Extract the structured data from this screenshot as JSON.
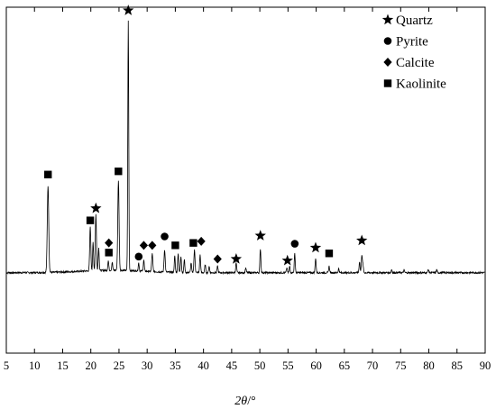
{
  "chart_data": {
    "type": "line",
    "title": "",
    "xlabel": {
      "symbol": "2θ",
      "unit": "/°"
    },
    "ylabel": "",
    "xlim": [
      5,
      90
    ],
    "grid": false,
    "legend_position": "top-right",
    "xticks": [
      5,
      10,
      15,
      20,
      25,
      30,
      35,
      40,
      45,
      50,
      55,
      60,
      65,
      70,
      75,
      80,
      85,
      90
    ],
    "xtick_labels": [
      "5",
      "10",
      "15",
      "20",
      "25",
      "30",
      "35",
      "40",
      "45",
      "50",
      "55",
      "60",
      "65",
      "70",
      "75",
      "80",
      "85",
      "90"
    ],
    "baseline": 100,
    "peaks": [
      {
        "x": 12.4,
        "h": 108,
        "w": 0.18
      },
      {
        "x": 19.9,
        "h": 55,
        "w": 0.14
      },
      {
        "x": 20.4,
        "h": 35,
        "w": 0.12
      },
      {
        "x": 20.9,
        "h": 70,
        "w": 0.14
      },
      {
        "x": 21.4,
        "h": 28,
        "w": 0.12
      },
      {
        "x": 23.1,
        "h": 12,
        "w": 0.12
      },
      {
        "x": 23.8,
        "h": 10,
        "w": 0.12
      },
      {
        "x": 24.9,
        "h": 112,
        "w": 0.16
      },
      {
        "x": 26.65,
        "h": 310,
        "w": 0.12
      },
      {
        "x": 28.5,
        "h": 10,
        "w": 0.12
      },
      {
        "x": 29.4,
        "h": 14,
        "w": 0.12
      },
      {
        "x": 30.9,
        "h": 22,
        "w": 0.14
      },
      {
        "x": 33.1,
        "h": 28,
        "w": 0.14
      },
      {
        "x": 34.9,
        "h": 20,
        "w": 0.12
      },
      {
        "x": 35.5,
        "h": 24,
        "w": 0.12
      },
      {
        "x": 36.0,
        "h": 20,
        "w": 0.12
      },
      {
        "x": 36.6,
        "h": 16,
        "w": 0.12
      },
      {
        "x": 37.8,
        "h": 12,
        "w": 0.12
      },
      {
        "x": 38.4,
        "h": 28,
        "w": 0.14
      },
      {
        "x": 39.4,
        "h": 22,
        "w": 0.12
      },
      {
        "x": 40.3,
        "h": 10,
        "w": 0.12
      },
      {
        "x": 41.0,
        "h": 8,
        "w": 0.12
      },
      {
        "x": 42.5,
        "h": 8,
        "w": 0.12
      },
      {
        "x": 45.8,
        "h": 12,
        "w": 0.12
      },
      {
        "x": 47.5,
        "h": 6,
        "w": 0.12
      },
      {
        "x": 50.1,
        "h": 30,
        "w": 0.12
      },
      {
        "x": 54.8,
        "h": 6,
        "w": 0.12
      },
      {
        "x": 55.3,
        "h": 8,
        "w": 0.12
      },
      {
        "x": 56.2,
        "h": 24,
        "w": 0.12
      },
      {
        "x": 59.9,
        "h": 18,
        "w": 0.12
      },
      {
        "x": 62.3,
        "h": 8,
        "w": 0.12
      },
      {
        "x": 64.0,
        "h": 5,
        "w": 0.12
      },
      {
        "x": 67.7,
        "h": 14,
        "w": 0.12
      },
      {
        "x": 68.1,
        "h": 22,
        "w": 0.12
      },
      {
        "x": 68.3,
        "h": 10,
        "w": 0.12
      },
      {
        "x": 73.4,
        "h": 4,
        "w": 0.12
      },
      {
        "x": 75.6,
        "h": 3,
        "w": 0.12
      },
      {
        "x": 79.9,
        "h": 4,
        "w": 0.12
      },
      {
        "x": 81.4,
        "h": 3,
        "w": 0.12
      }
    ],
    "markers": [
      {
        "phase": "Kaolinite",
        "x": 12.4,
        "y": 222
      },
      {
        "phase": "Kaolinite",
        "x": 19.9,
        "y": 165
      },
      {
        "phase": "Quartz",
        "x": 20.9,
        "y": 180
      },
      {
        "phase": "Calcite",
        "x": 23.2,
        "y": 137
      },
      {
        "phase": "Kaolinite",
        "x": 23.2,
        "y": 125
      },
      {
        "phase": "Kaolinite",
        "x": 24.9,
        "y": 226
      },
      {
        "phase": "Quartz",
        "x": 26.65,
        "y": 426
      },
      {
        "phase": "Pyrite",
        "x": 28.5,
        "y": 120
      },
      {
        "phase": "Calcite",
        "x": 29.4,
        "y": 134
      },
      {
        "phase": "Calcite",
        "x": 30.9,
        "y": 134
      },
      {
        "phase": "Pyrite",
        "x": 33.1,
        "y": 145
      },
      {
        "phase": "Kaolinite",
        "x": 35.0,
        "y": 134
      },
      {
        "phase": "Kaolinite",
        "x": 38.2,
        "y": 137
      },
      {
        "phase": "Calcite",
        "x": 39.6,
        "y": 139
      },
      {
        "phase": "Calcite",
        "x": 42.5,
        "y": 117
      },
      {
        "phase": "Quartz",
        "x": 45.8,
        "y": 117
      },
      {
        "phase": "Quartz",
        "x": 50.1,
        "y": 146
      },
      {
        "phase": "Quartz",
        "x": 54.9,
        "y": 115
      },
      {
        "phase": "Pyrite",
        "x": 56.2,
        "y": 136
      },
      {
        "phase": "Quartz",
        "x": 59.9,
        "y": 131
      },
      {
        "phase": "Kaolinite",
        "x": 62.3,
        "y": 124
      },
      {
        "phase": "Quartz",
        "x": 68.1,
        "y": 140
      }
    ],
    "legend": [
      {
        "label": "Quartz",
        "symbol": "star"
      },
      {
        "label": "Pyrite",
        "symbol": "circle"
      },
      {
        "label": "Calcite",
        "symbol": "diamond"
      },
      {
        "label": "Kaolinite",
        "symbol": "square"
      }
    ]
  }
}
